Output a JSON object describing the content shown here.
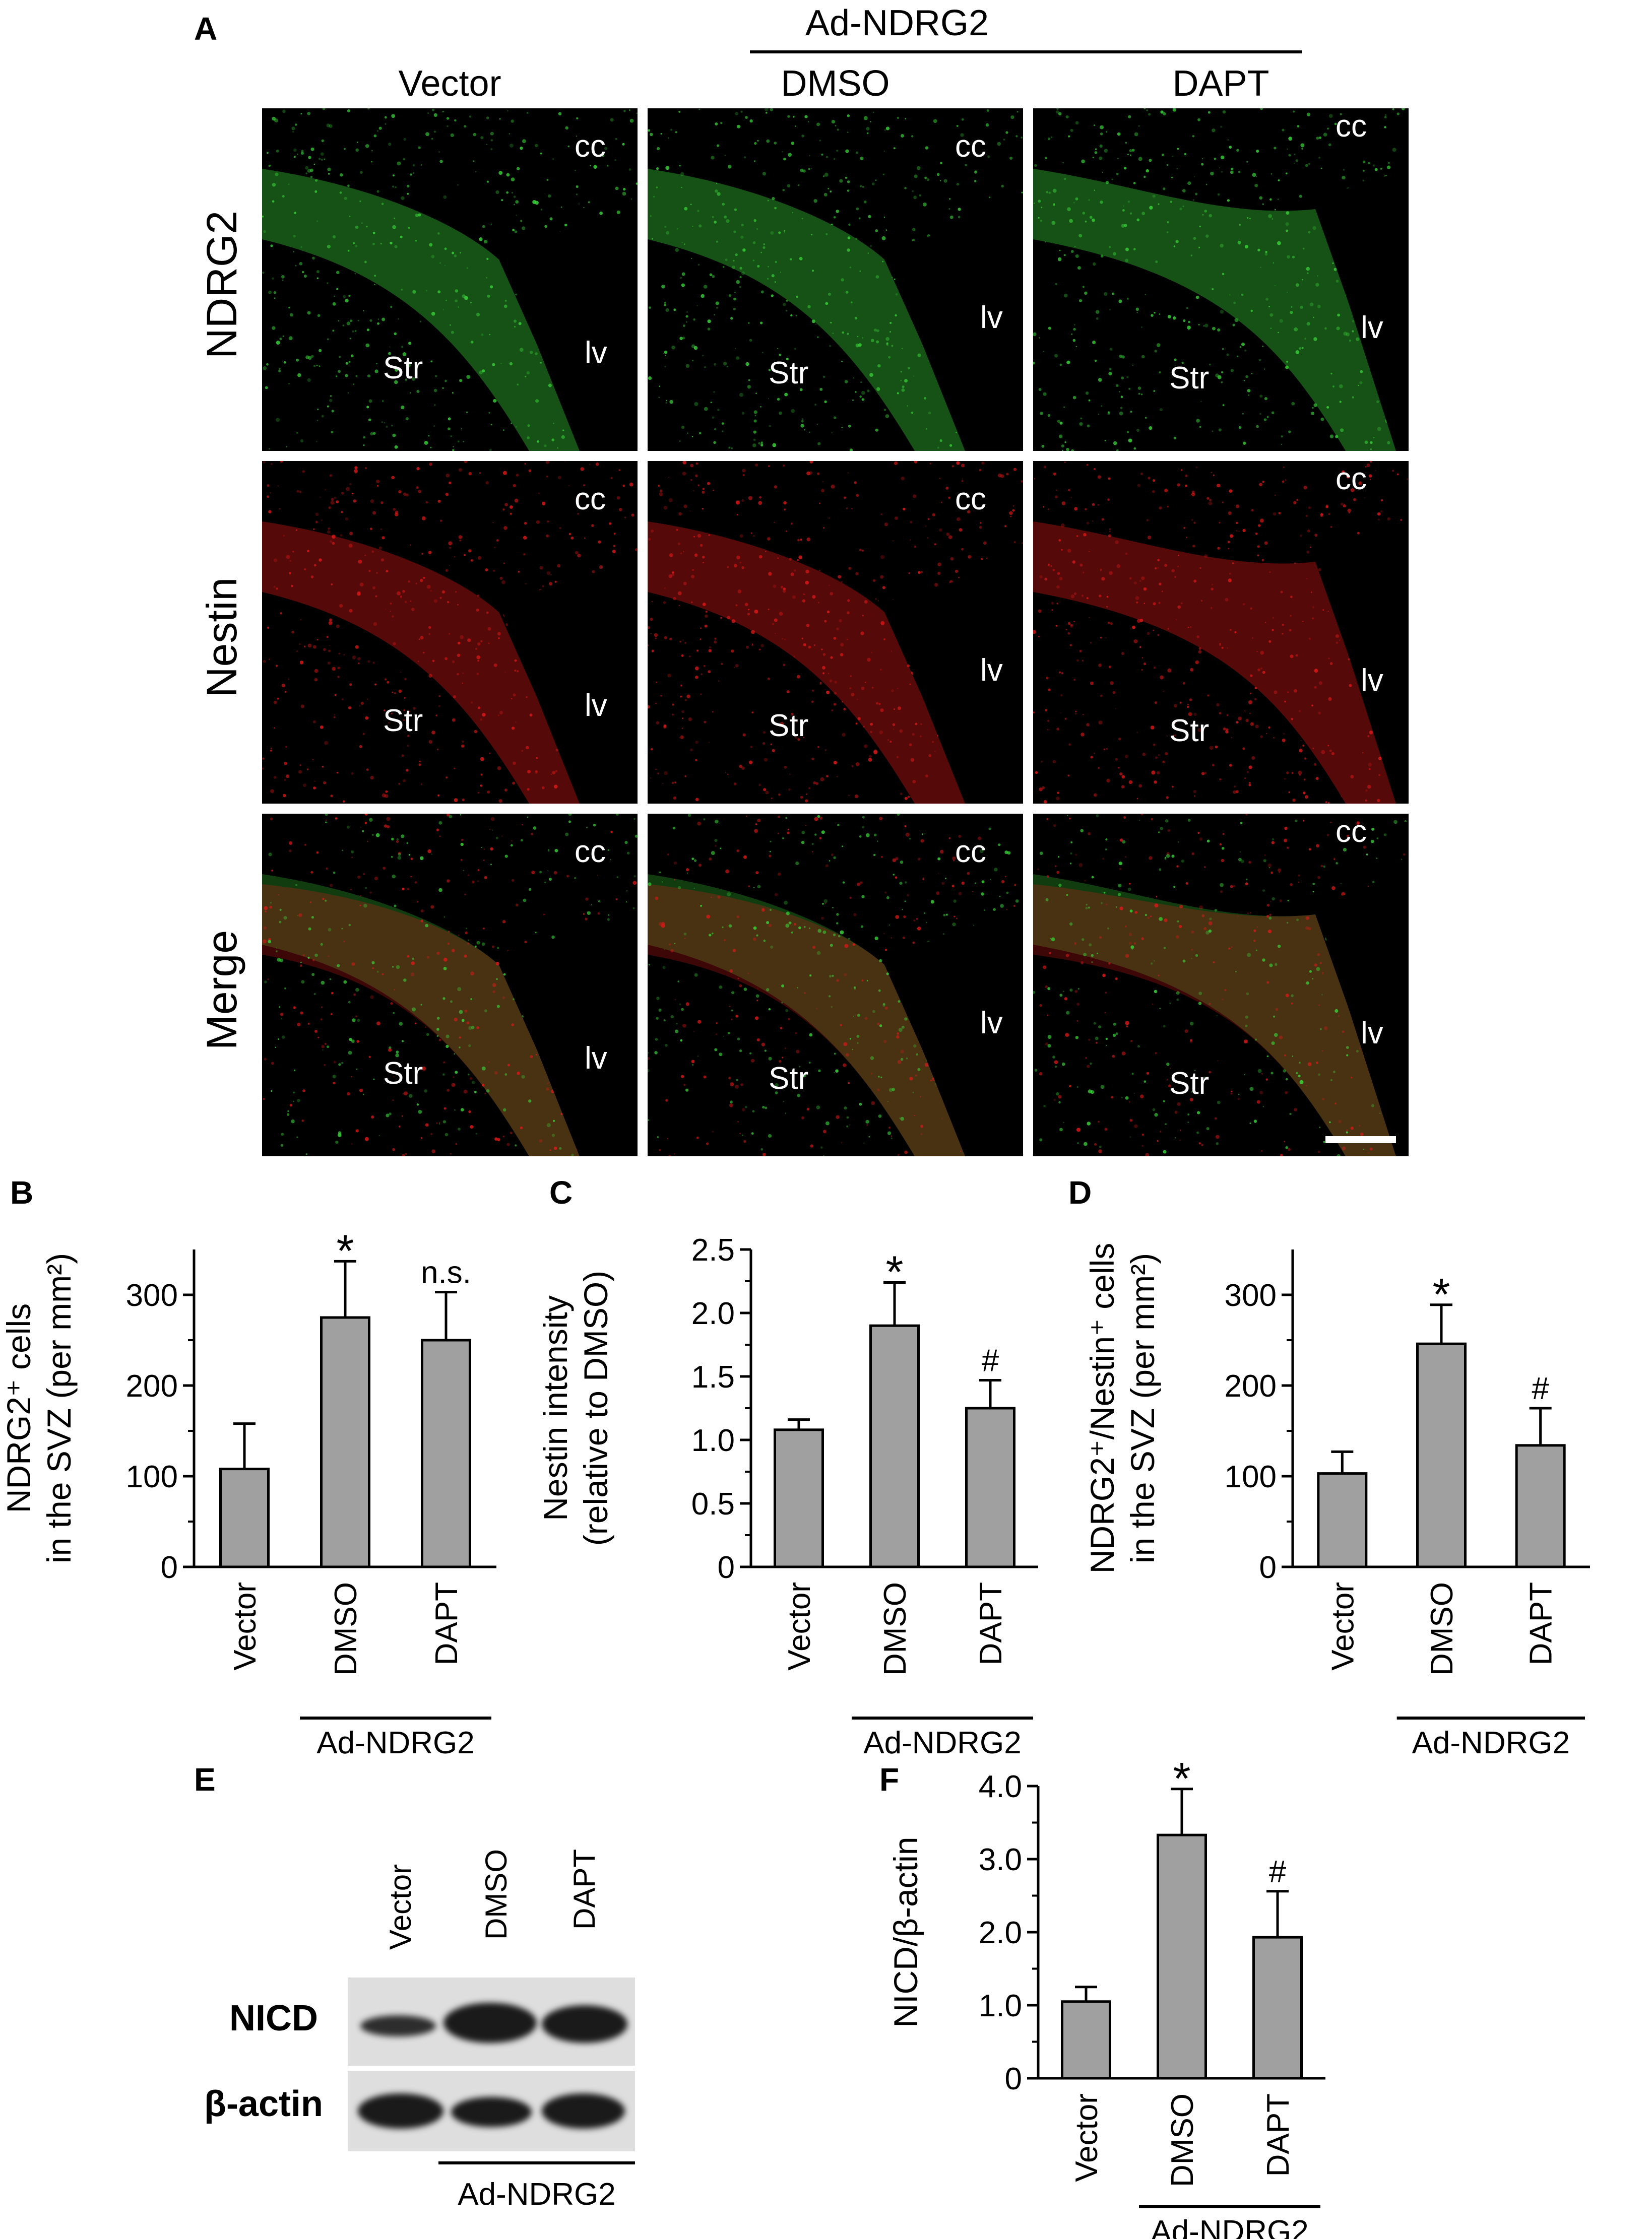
{
  "panels": {
    "A": "A",
    "B": "B",
    "C": "C",
    "D": "D",
    "E": "E",
    "F": "F"
  },
  "panelA": {
    "group_label": "Ad-NDRG2",
    "columns": [
      "Vector",
      "DMSO",
      "DAPT"
    ],
    "rows": [
      "NDRG2",
      "Nestin",
      "Merge"
    ],
    "region_labels": {
      "cc": "cc",
      "lv": "lv",
      "str": "Str"
    },
    "colors": {
      "green": "#39d639",
      "red": "#e01818",
      "bg": "#000000"
    }
  },
  "group_label": "Ad-NDRG2",
  "chart_data": [
    {
      "panel": "B",
      "type": "bar",
      "categories": [
        "Vector",
        "DMSO",
        "DAPT"
      ],
      "values": [
        108,
        275,
        250
      ],
      "errors": [
        50,
        62,
        53
      ],
      "annotations": [
        "",
        "*",
        "n.s."
      ],
      "ylabel_line1": "NDRG2⁺ cells",
      "ylabel_line2": "in the SVZ (per mm²)",
      "ylim": [
        0,
        350
      ],
      "yticks": [
        0,
        100,
        200,
        300
      ],
      "bar_color": "#a0a0a0"
    },
    {
      "panel": "C",
      "type": "bar",
      "categories": [
        "Vector",
        "DMSO",
        "DAPT"
      ],
      "values": [
        1.08,
        1.9,
        1.25
      ],
      "errors": [
        0.08,
        0.34,
        0.22
      ],
      "annotations": [
        "",
        "*",
        "#"
      ],
      "ylabel_line1": "Nestin intensity",
      "ylabel_line2": "(relative to DMSO)",
      "ylim": [
        0,
        2.5
      ],
      "yticks": [
        0,
        0.5,
        1.0,
        1.5,
        2.0,
        2.5
      ],
      "ytick_labels": [
        "0",
        "0.5",
        "1.0",
        "1.5",
        "2.0",
        "2.5"
      ],
      "bar_color": "#a0a0a0"
    },
    {
      "panel": "D",
      "type": "bar",
      "categories": [
        "Vector",
        "DMSO",
        "DAPT"
      ],
      "values": [
        103,
        246,
        134
      ],
      "errors": [
        24,
        43,
        41
      ],
      "annotations": [
        "",
        "*",
        "#"
      ],
      "ylabel_line1": "NDRG2⁺/Nestin⁺ cells",
      "ylabel_line2": "in the SVZ (per mm²)",
      "ylim": [
        0,
        350
      ],
      "yticks": [
        0,
        100,
        200,
        300
      ],
      "bar_color": "#a0a0a0"
    },
    {
      "panel": "F",
      "type": "bar",
      "categories": [
        "Vector",
        "DMSO",
        "DAPT"
      ],
      "values": [
        1.05,
        3.33,
        1.93
      ],
      "errors": [
        0.2,
        0.63,
        0.63
      ],
      "annotations": [
        "",
        "*",
        "#"
      ],
      "ylabel_line1": "NICD/β-actin",
      "ylabel_line2": "",
      "ylim": [
        0,
        4.0
      ],
      "yticks": [
        0,
        1.0,
        2.0,
        3.0,
        4.0
      ],
      "ytick_labels": [
        "0",
        "1.0",
        "2.0",
        "3.0",
        "4.0"
      ],
      "bar_color": "#a0a0a0"
    }
  ],
  "panelE": {
    "lanes": [
      "Vector",
      "DMSO",
      "DAPT"
    ],
    "rows": [
      "NICD",
      "β-actin"
    ],
    "group_label": "Ad-NDRG2"
  }
}
